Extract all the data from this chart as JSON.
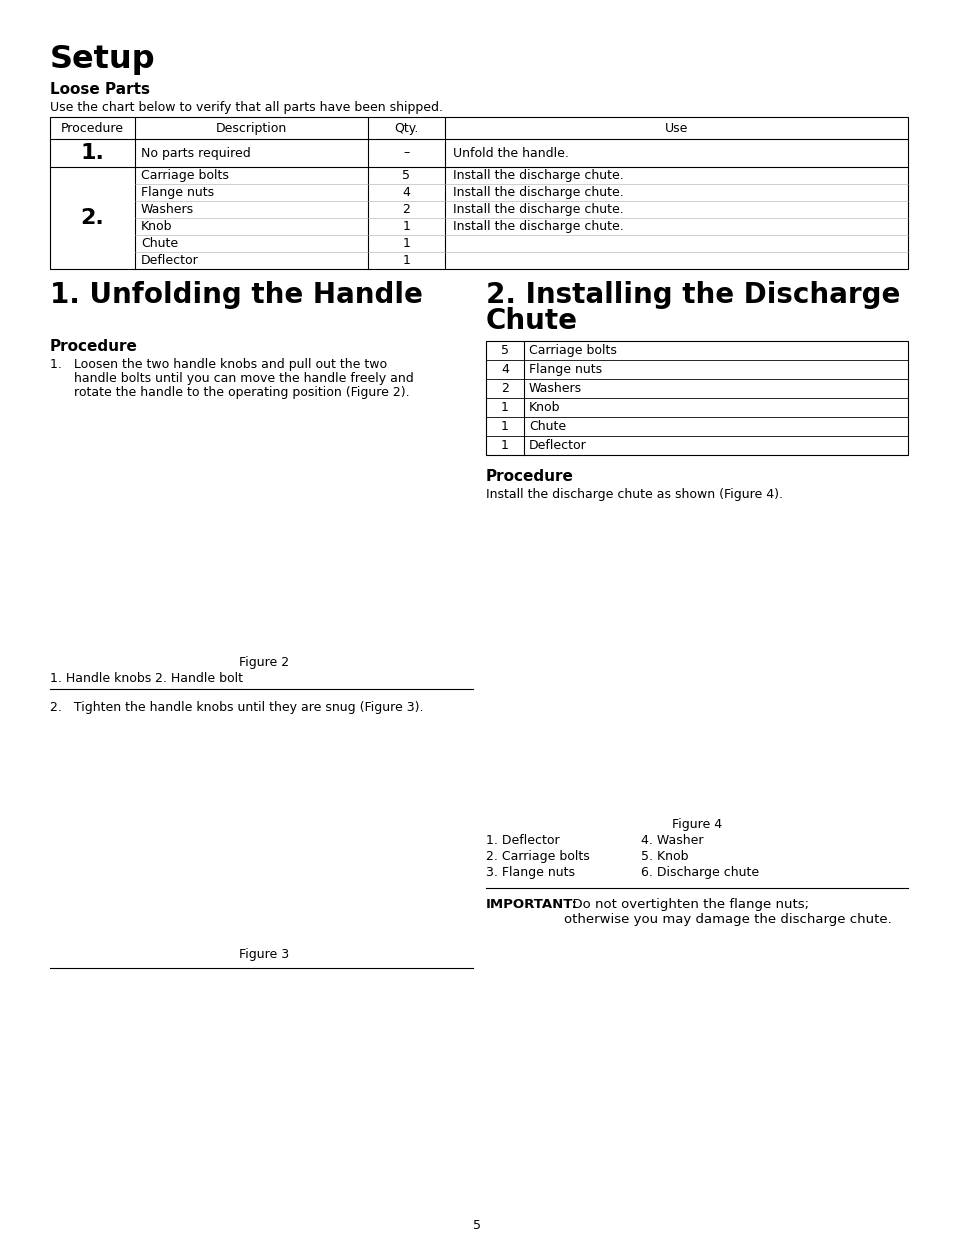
{
  "page_bg": "#ffffff",
  "title": "Setup",
  "loose_parts_heading": "Loose Parts",
  "loose_parts_intro": "Use the chart below to verify that all parts have been shipped.",
  "table_headers": [
    "Procedure",
    "Description",
    "Qty.",
    "Use"
  ],
  "table_row1_proc": "1.",
  "table_row1_desc": "No parts required",
  "table_row1_qty": "–",
  "table_row1_use": "Unfold the handle.",
  "table_row2_proc": "2.",
  "table_row2_items": [
    [
      "Carriage bolts",
      "5",
      "Install the discharge chute."
    ],
    [
      "Flange nuts",
      "4",
      "Install the discharge chute."
    ],
    [
      "Washers",
      "2",
      "Install the discharge chute."
    ],
    [
      "Knob",
      "1",
      "Install the discharge chute."
    ],
    [
      "Chute",
      "1",
      ""
    ],
    [
      "Deflector",
      "1",
      ""
    ]
  ],
  "section1_title": "1. Unfolding the Handle",
  "section1_proc_heading": "Procedure",
  "section1_step1_lines": [
    "1.   Loosen the two handle knobs and pull out the two",
    "      handle bolts until you can move the handle freely and",
    "      rotate the handle to the operating position (Figure 2)."
  ],
  "figure2_caption": "Figure 2",
  "figure2_leg1": "1. Handle knobs",
  "figure2_leg2": "2. Handle bolt",
  "section1_step2": "2.   Tighten the handle knobs until they are snug (Figure 3).",
  "figure3_caption": "Figure 3",
  "section2_title_line1": "2. Installing the Discharge",
  "section2_title_line2": "Chute",
  "section2_table": [
    [
      "5",
      "Carriage bolts"
    ],
    [
      "4",
      "Flange nuts"
    ],
    [
      "2",
      "Washers"
    ],
    [
      "1",
      "Knob"
    ],
    [
      "1",
      "Chute"
    ],
    [
      "1",
      "Deflector"
    ]
  ],
  "section2_proc_heading": "Procedure",
  "section2_proc_text": "Install the discharge chute as shown (Figure 4).",
  "figure4_caption": "Figure 4",
  "figure4_legend_col1": [
    "1. Deflector",
    "2. Carriage bolts",
    "3. Flange nuts"
  ],
  "figure4_legend_col2": [
    "4. Washer",
    "5. Knob",
    "6. Discharge chute"
  ],
  "important_label": "IMPORTANT:",
  "important_rest": "  Do not overtighten the flange nuts;\notherwise you may damage the discharge chute.",
  "page_number": "5",
  "text_color": "#000000",
  "border_color": "#000000"
}
